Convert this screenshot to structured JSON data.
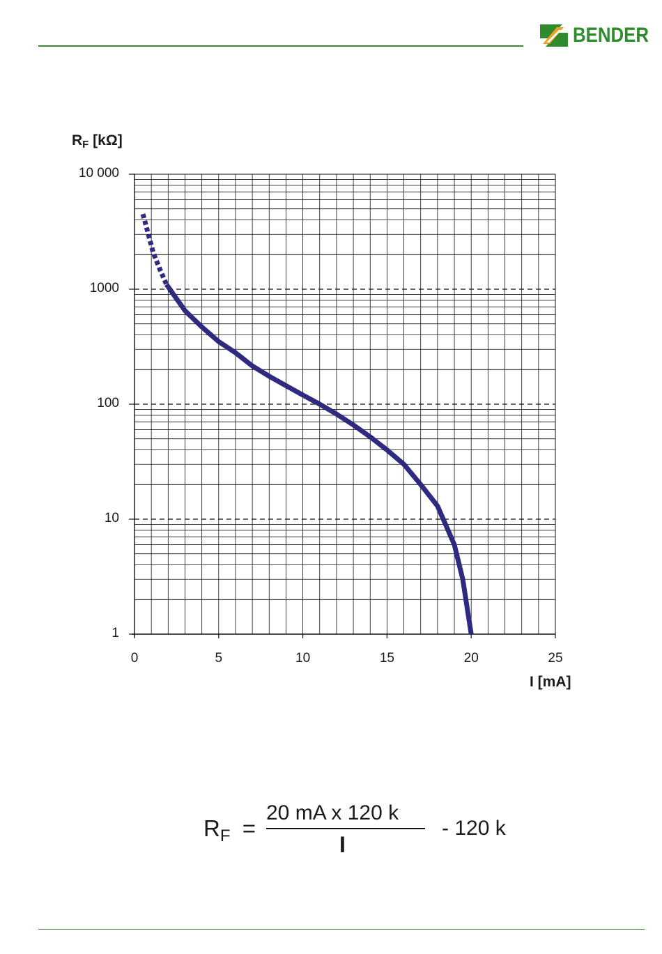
{
  "header": {
    "brand": "BENDER",
    "brand_color": "#2e8b2e",
    "brand_mark_colors": [
      "#2e8b2e",
      "#f0a020"
    ]
  },
  "chart_data": {
    "type": "line",
    "xlabel": "I [mA]",
    "ylabel": "RF [kΩ]",
    "xlim": [
      0,
      25
    ],
    "ylim": [
      1,
      10000
    ],
    "yscale": "log",
    "grid": true,
    "x_ticks": [
      "0",
      "5",
      "10",
      "15",
      "20",
      "25"
    ],
    "y_ticks": [
      "1",
      "10",
      "100",
      "1000",
      "10 000"
    ],
    "series": [
      {
        "style": "dotted",
        "color": "#2e2a80",
        "x": [
          0.5,
          0.8,
          1.1,
          1.5,
          1.9
        ],
        "y": [
          4500,
          3100,
          2100,
          1500,
          1100
        ]
      },
      {
        "style": "solid",
        "color": "#2e2a80",
        "x": [
          1.9,
          3,
          4,
          5,
          6,
          7,
          8,
          9,
          10,
          11,
          12,
          13,
          14,
          15,
          16,
          17,
          18,
          19,
          19.5,
          20
        ],
        "y": [
          1100,
          650,
          470,
          350,
          280,
          215,
          175,
          145,
          120,
          100,
          82,
          66,
          52,
          40,
          30,
          20,
          13,
          6,
          3,
          1
        ]
      }
    ]
  },
  "formula": {
    "lhs": "R",
    "lhs_sub": "F",
    "equals": "=",
    "numerator": "20 mA x 120 k",
    "denominator": "I",
    "tail": "- 120 k"
  }
}
